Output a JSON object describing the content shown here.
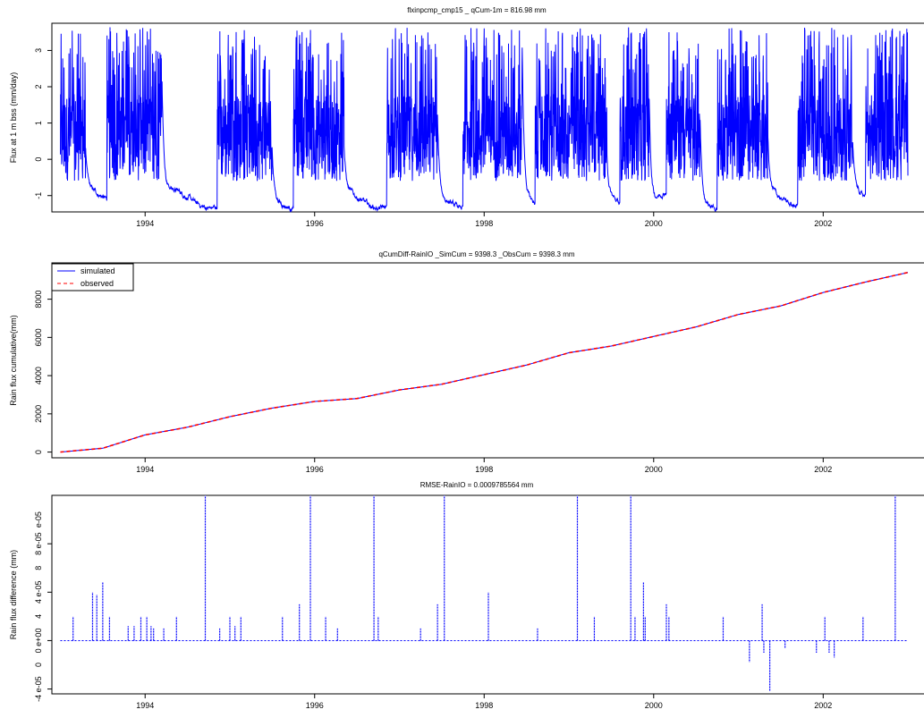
{
  "chart_data": [
    {
      "type": "line",
      "title": "flxinpcmp_cmp15 _ qCum-1m  =  816.98  mm",
      "xlabel": "",
      "ylabel": "Flux at 1 m bss (mm/day)",
      "xlim": [
        1992.9,
        2003.2
      ],
      "ylim": [
        -1.45,
        3.75
      ],
      "x_ticks": [
        1994,
        1996,
        1998,
        2000,
        2002
      ],
      "x_tick_labels": [
        "1994",
        "1996",
        "1998",
        "2000",
        "2002"
      ],
      "y_ticks": [
        -1,
        0,
        1,
        2,
        3
      ],
      "y_tick_labels": [
        "-1",
        "0",
        "1",
        "2",
        "3"
      ],
      "grid": false,
      "series": [
        {
          "color": "#0000ff",
          "style": "solid",
          "wet_periods": [
            [
              1993.0,
              1993.3
            ],
            [
              1993.55,
              1994.2
            ],
            [
              1994.85,
              1995.5
            ],
            [
              1995.75,
              1996.35
            ],
            [
              1996.85,
              1997.45
            ],
            [
              1997.75,
              1998.45
            ],
            [
              1998.6,
              1999.45
            ],
            [
              1999.6,
              1999.95
            ],
            [
              2000.15,
              2000.55
            ],
            [
              2000.75,
              2001.35
            ],
            [
              2001.7,
              2002.35
            ],
            [
              2002.5,
              2003.0
            ]
          ],
          "baseline_min": -1.35,
          "baseline_max": -0.8,
          "peak_max": 3.65
        }
      ]
    },
    {
      "type": "line",
      "title": "qCumDiff-RainIO _SimCum =  9398.3 _ObsCum =  9398.3  mm",
      "xlabel": "",
      "ylabel": "Rain flux cumulative(mm)",
      "xlim": [
        1992.9,
        2003.2
      ],
      "ylim": [
        -300,
        9900
      ],
      "x_ticks": [
        1994,
        1996,
        1998,
        2000,
        2002
      ],
      "x_tick_labels": [
        "1994",
        "1996",
        "1998",
        "2000",
        "2002"
      ],
      "y_ticks": [
        0,
        2000,
        4000,
        6000,
        8000
      ],
      "y_tick_labels": [
        "0",
        "2000",
        "4000",
        "6000",
        "8000"
      ],
      "grid": false,
      "legend": "top-left",
      "series": [
        {
          "name": "simulated",
          "color": "#0000ff",
          "style": "solid",
          "x": [
            1993.0,
            1993.5,
            1994.0,
            1994.5,
            1995.0,
            1995.5,
            1996.0,
            1996.5,
            1997.0,
            1997.5,
            1998.0,
            1998.5,
            1999.0,
            1999.5,
            2000.0,
            2000.5,
            2001.0,
            2001.5,
            2002.0,
            2002.5,
            2003.0
          ],
          "y": [
            0,
            200,
            900,
            1300,
            1850,
            2300,
            2650,
            2800,
            3250,
            3550,
            4050,
            4550,
            5200,
            5550,
            6050,
            6550,
            7200,
            7650,
            8350,
            8900,
            9398.3
          ]
        },
        {
          "name": "observed",
          "color": "#ff0000",
          "style": "dashed",
          "x": [
            1993.0,
            1993.5,
            1994.0,
            1994.5,
            1995.0,
            1995.5,
            1996.0,
            1996.5,
            1997.0,
            1997.5,
            1998.0,
            1998.5,
            1999.0,
            1999.5,
            2000.0,
            2000.5,
            2001.0,
            2001.5,
            2002.0,
            2002.5,
            2003.0
          ],
          "y": [
            0,
            200,
            900,
            1300,
            1850,
            2300,
            2650,
            2800,
            3250,
            3550,
            4050,
            4550,
            5200,
            5550,
            6050,
            6550,
            7200,
            7650,
            8350,
            8900,
            9398.3
          ]
        }
      ]
    },
    {
      "type": "line",
      "title": "RMSE-RainIO  =  0.0009785564  mm",
      "xlabel": "",
      "ylabel": "Rain flux difference (mm)",
      "xlim": [
        1992.9,
        2003.2
      ],
      "ylim": [
        -4.4e-05,
        0.00012
      ],
      "x_ticks": [
        1994,
        1996,
        1998,
        2000,
        2002
      ],
      "x_tick_labels": [
        "1994",
        "1996",
        "1998",
        "2000",
        "2002"
      ],
      "y_ticks": [
        -4e-05,
        0,
        4e-05,
        8e-05
      ],
      "y_tick_labels": [
        "-4 e-05",
        "0 e+00",
        "4 e-05",
        "8 e-05"
      ],
      "y_minor_ticks": [
        -2e-05,
        2e-05,
        6e-05,
        0.0001
      ],
      "y_minor_tick_labels": [
        "0",
        "4",
        "8",
        "e-05"
      ],
      "grid": false,
      "series": [
        {
          "color": "#0000ff",
          "style": "dotted",
          "spikes": [
            [
              1993.15,
              2e-05
            ],
            [
              1993.38,
              4e-05
            ],
            [
              1993.43,
              3.8e-05
            ],
            [
              1993.5,
              4.8e-05
            ],
            [
              1993.58,
              2e-05
            ],
            [
              1993.8,
              1.2e-05
            ],
            [
              1993.87,
              1.2e-05
            ],
            [
              1993.95,
              2e-05
            ],
            [
              1994.02,
              2e-05
            ],
            [
              1994.07,
              1.2e-05
            ],
            [
              1994.1,
              1e-05
            ],
            [
              1994.22,
              1e-05
            ],
            [
              1994.37,
              2e-05
            ],
            [
              1994.71,
              0.00012
            ],
            [
              1994.88,
              1e-05
            ],
            [
              1995.0,
              2e-05
            ],
            [
              1995.06,
              1.2e-05
            ],
            [
              1995.13,
              2e-05
            ],
            [
              1995.62,
              2e-05
            ],
            [
              1995.82,
              3e-05
            ],
            [
              1995.95,
              0.00012
            ],
            [
              1996.13,
              2e-05
            ],
            [
              1996.27,
              1e-05
            ],
            [
              1996.7,
              0.00012
            ],
            [
              1996.75,
              2e-05
            ],
            [
              1997.25,
              1e-05
            ],
            [
              1997.45,
              3e-05
            ],
            [
              1997.53,
              0.00012
            ],
            [
              1998.05,
              4e-05
            ],
            [
              1998.63,
              1e-05
            ],
            [
              1999.1,
              0.00012
            ],
            [
              1999.3,
              2e-05
            ],
            [
              1999.73,
              0.00012
            ],
            [
              1999.78,
              2e-05
            ],
            [
              1999.88,
              4.8e-05
            ],
            [
              1999.9,
              2e-05
            ],
            [
              2000.15,
              3e-05
            ],
            [
              2000.18,
              2e-05
            ],
            [
              2000.82,
              2e-05
            ],
            [
              2001.13,
              -1.8e-05
            ],
            [
              2001.28,
              3e-05
            ],
            [
              2001.3,
              -1e-05
            ],
            [
              2001.37,
              -4.2e-05
            ],
            [
              2001.55,
              -6e-06
            ],
            [
              2001.92,
              -1e-05
            ],
            [
              2002.02,
              2e-05
            ],
            [
              2002.07,
              -1e-05
            ],
            [
              2002.13,
              -1.4e-05
            ],
            [
              2002.47,
              2e-05
            ],
            [
              2002.85,
              0.00012
            ]
          ]
        }
      ]
    }
  ]
}
